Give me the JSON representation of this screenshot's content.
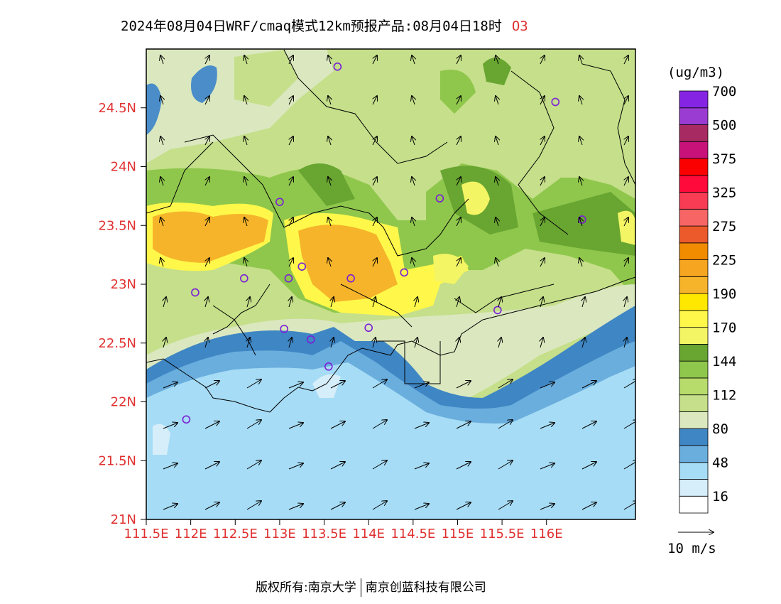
{
  "title": {
    "text": "2024年08月04日WRF/cmaq模式12km预报产品:08月04日18时",
    "species": "O3"
  },
  "colorbar": {
    "unit": "(ug/m3)",
    "colors": [
      "#ffffff",
      "#d6eefa",
      "#a6dcf5",
      "#6aaede",
      "#3f86c4",
      "#dbe8bf",
      "#c5df8a",
      "#b7dc6c",
      "#8fc74c",
      "#68a531",
      "#f3f564",
      "#fff84a",
      "#ffe800",
      "#f6b42a",
      "#f5a51f",
      "#f18b00",
      "#ec5a2c",
      "#f86565",
      "#f73c54",
      "#ff0a3a",
      "#fa0000",
      "#c8127a",
      "#a82a62",
      "#9a3cd2",
      "#8525e3"
    ],
    "labels": [
      "16",
      "48",
      "80",
      "112",
      "144",
      "170",
      "190",
      "225",
      "275",
      "325",
      "375",
      "500",
      "700"
    ]
  },
  "wind_legend": {
    "label": "10 m/s"
  },
  "axes": {
    "lat_labels": [
      {
        "lat": 24.5,
        "text": "24.5N"
      },
      {
        "lat": 24,
        "text": "24N"
      },
      {
        "lat": 23.5,
        "text": "23.5N"
      },
      {
        "lat": 23,
        "text": "23N"
      },
      {
        "lat": 22.5,
        "text": "22.5N"
      },
      {
        "lat": 22,
        "text": "22N"
      },
      {
        "lat": 21.5,
        "text": "21.5N"
      },
      {
        "lat": 21,
        "text": "21N"
      }
    ],
    "lon_labels": [
      {
        "lon": 111.5,
        "text": "111.5E"
      },
      {
        "lon": 112,
        "text": "112E"
      },
      {
        "lon": 112.5,
        "text": "112.5E"
      },
      {
        "lon": 113,
        "text": "113E"
      },
      {
        "lon": 113.5,
        "text": "113.5E"
      },
      {
        "lon": 114,
        "text": "114E"
      },
      {
        "lon": 114.5,
        "text": "114.5E"
      },
      {
        "lon": 115,
        "text": "115E"
      },
      {
        "lon": 115.5,
        "text": "115.5E"
      },
      {
        "lon": 116,
        "text": "116E"
      }
    ],
    "lon_range": [
      111.5,
      117.0
    ],
    "lat_range": [
      21.0,
      25.0
    ]
  },
  "stations": [
    {
      "lon": 113.65,
      "lat": 24.85
    },
    {
      "lon": 116.1,
      "lat": 24.55
    },
    {
      "lon": 113.0,
      "lat": 23.7
    },
    {
      "lon": 114.8,
      "lat": 23.73
    },
    {
      "lon": 116.4,
      "lat": 23.55
    },
    {
      "lon": 113.25,
      "lat": 23.15
    },
    {
      "lon": 113.1,
      "lat": 23.05
    },
    {
      "lon": 113.8,
      "lat": 23.05
    },
    {
      "lon": 114.4,
      "lat": 23.1
    },
    {
      "lon": 112.6,
      "lat": 23.05
    },
    {
      "lon": 112.05,
      "lat": 22.93
    },
    {
      "lon": 115.45,
      "lat": 22.78
    },
    {
      "lon": 113.05,
      "lat": 22.62
    },
    {
      "lon": 113.35,
      "lat": 22.53
    },
    {
      "lon": 114.0,
      "lat": 22.63
    },
    {
      "lon": 113.55,
      "lat": 22.3
    },
    {
      "lon": 111.95,
      "lat": 21.85
    }
  ],
  "footer": {
    "left": "版权所有:南京大学",
    "right": "南京创蓝科技有限公司"
  }
}
